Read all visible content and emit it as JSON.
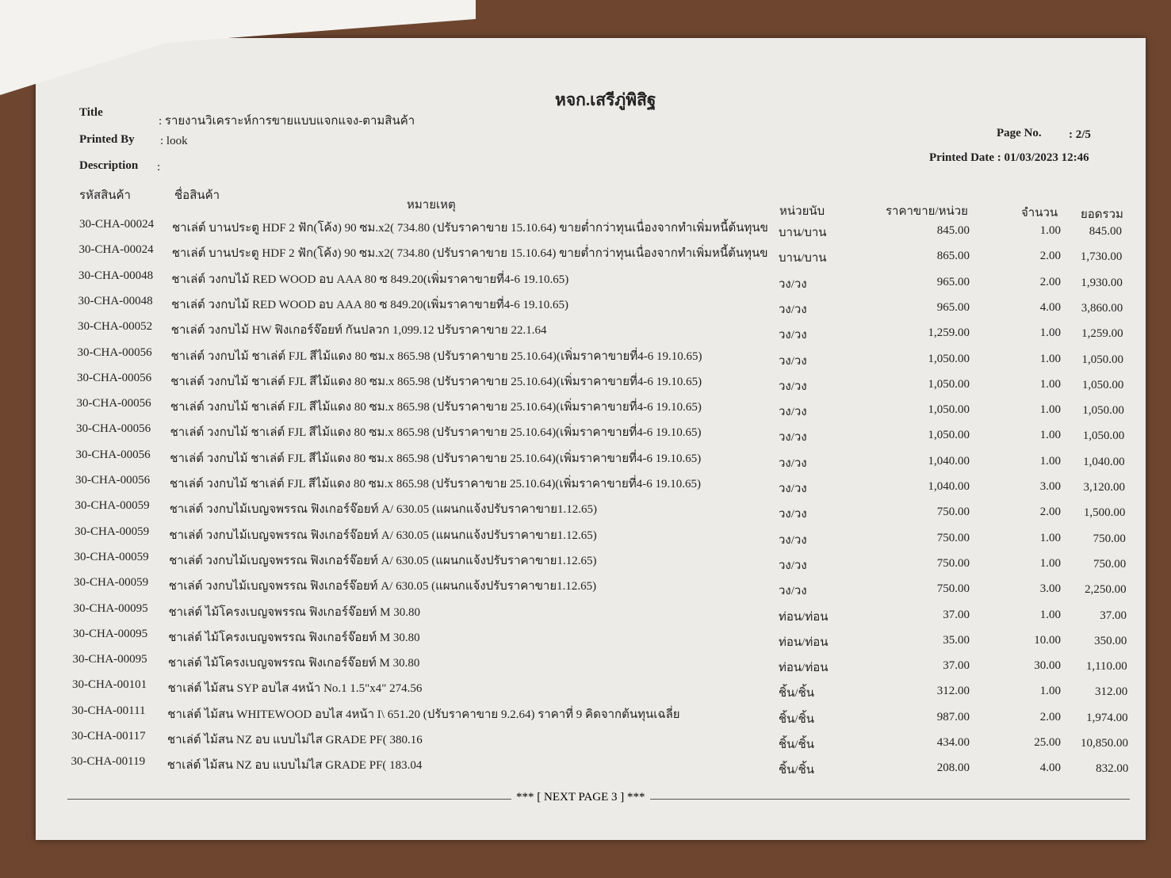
{
  "header": {
    "company": "หจก.เสรีภู่พิสิฐ",
    "title_label": "Title",
    "title_value": ": รายงานวิเคราะห์การขายแบบแจกแจง-ตามสินค้า",
    "printed_by_label": "Printed By",
    "printed_by_value": ": look",
    "description_label": "Description",
    "description_value": ":",
    "page_label": "Page No.",
    "page_value": ": 2/5",
    "printed_date": "Printed Date : 01/03/2023 12:46"
  },
  "table": {
    "columns": [
      "รหัสสินค้า",
      "ชื่อสินค้า",
      "หมายเหตุ",
      "หน่วยนับ",
      "ราคาขาย/หน่วย",
      "จำนวน",
      "ยอดรวม"
    ],
    "rows": [
      [
        "30-CHA-00024",
        "ชาเล่ต์ บานประตู HDF 2 ฟัก(โค้ง) 90 ซม.x2( 734.80 (ปรับราคาขาย 15.10.64) ขายต่ำกว่าทุนเนื่องจากทำเพิ่มหนี้ต้นทุนข",
        "บาน/บาน",
        "845.00",
        "1.00",
        "845.00"
      ],
      [
        "30-CHA-00024",
        "ชาเล่ต์ บานประตู HDF 2 ฟัก(โค้ง) 90 ซม.x2( 734.80 (ปรับราคาขาย 15.10.64) ขายต่ำกว่าทุนเนื่องจากทำเพิ่มหนี้ต้นทุนข",
        "บาน/บาน",
        "865.00",
        "2.00",
        "1,730.00"
      ],
      [
        "30-CHA-00048",
        "ชาเล่ต์ วงกบไม้ RED WOOD อบ AAA 80 ซ 849.20(เพิ่มราคาขายที่4-6 19.10.65)",
        "วง/วง",
        "965.00",
        "2.00",
        "1,930.00"
      ],
      [
        "30-CHA-00048",
        "ชาเล่ต์ วงกบไม้ RED WOOD อบ AAA 80 ซ 849.20(เพิ่มราคาขายที่4-6 19.10.65)",
        "วง/วง",
        "965.00",
        "4.00",
        "3,860.00"
      ],
      [
        "30-CHA-00052",
        "ชาเล่ต์ วงกบไม้ HW ฟิงเกอร์จ๊อยท์ กันปลวก 1,099.12 ปรับราคาขาย 22.1.64",
        "วง/วง",
        "1,259.00",
        "1.00",
        "1,259.00"
      ],
      [
        "30-CHA-00056",
        "ชาเล่ต์ วงกบไม้ ชาเล่ต์ FJL สีไม้แดง 80 ซม.x 865.98 (ปรับราคาขาย 25.10.64)(เพิ่มราคาขายที่4-6 19.10.65)",
        "วง/วง",
        "1,050.00",
        "1.00",
        "1,050.00"
      ],
      [
        "30-CHA-00056",
        "ชาเล่ต์ วงกบไม้ ชาเล่ต์ FJL สีไม้แดง 80 ซม.x 865.98 (ปรับราคาขาย 25.10.64)(เพิ่มราคาขายที่4-6 19.10.65)",
        "วง/วง",
        "1,050.00",
        "1.00",
        "1,050.00"
      ],
      [
        "30-CHA-00056",
        "ชาเล่ต์ วงกบไม้ ชาเล่ต์ FJL สีไม้แดง 80 ซม.x 865.98 (ปรับราคาขาย 25.10.64)(เพิ่มราคาขายที่4-6 19.10.65)",
        "วง/วง",
        "1,050.00",
        "1.00",
        "1,050.00"
      ],
      [
        "30-CHA-00056",
        "ชาเล่ต์ วงกบไม้ ชาเล่ต์ FJL สีไม้แดง 80 ซม.x 865.98 (ปรับราคาขาย 25.10.64)(เพิ่มราคาขายที่4-6 19.10.65)",
        "วง/วง",
        "1,050.00",
        "1.00",
        "1,050.00"
      ],
      [
        "30-CHA-00056",
        "ชาเล่ต์ วงกบไม้ ชาเล่ต์ FJL สีไม้แดง 80 ซม.x 865.98 (ปรับราคาขาย 25.10.64)(เพิ่มราคาขายที่4-6 19.10.65)",
        "วง/วง",
        "1,040.00",
        "1.00",
        "1,040.00"
      ],
      [
        "30-CHA-00056",
        "ชาเล่ต์ วงกบไม้ ชาเล่ต์ FJL สีไม้แดง 80 ซม.x 865.98 (ปรับราคาขาย 25.10.64)(เพิ่มราคาขายที่4-6 19.10.65)",
        "วง/วง",
        "1,040.00",
        "3.00",
        "3,120.00"
      ],
      [
        "30-CHA-00059",
        "ชาเล่ต์ วงกบไม้เบญจพรรณ ฟิงเกอร์จ๊อยท์ A/ 630.05 (แผนกแจ้งปรับราคาขาย1.12.65)",
        "วง/วง",
        "750.00",
        "2.00",
        "1,500.00"
      ],
      [
        "30-CHA-00059",
        "ชาเล่ต์ วงกบไม้เบญจพรรณ ฟิงเกอร์จ๊อยท์ A/ 630.05 (แผนกแจ้งปรับราคาขาย1.12.65)",
        "วง/วง",
        "750.00",
        "1.00",
        "750.00"
      ],
      [
        "30-CHA-00059",
        "ชาเล่ต์ วงกบไม้เบญจพรรณ ฟิงเกอร์จ๊อยท์ A/ 630.05 (แผนกแจ้งปรับราคาขาย1.12.65)",
        "วง/วง",
        "750.00",
        "1.00",
        "750.00"
      ],
      [
        "30-CHA-00059",
        "ชาเล่ต์ วงกบไม้เบญจพรรณ ฟิงเกอร์จ๊อยท์ A/ 630.05 (แผนกแจ้งปรับราคาขาย1.12.65)",
        "วง/วง",
        "750.00",
        "3.00",
        "2,250.00"
      ],
      [
        "30-CHA-00095",
        "ชาเล่ต์ ไม้โครงเบญจพรรณ ฟิงเกอร์จ๊อยท์ M 30.80",
        "ท่อน/ท่อน",
        "37.00",
        "1.00",
        "37.00"
      ],
      [
        "30-CHA-00095",
        "ชาเล่ต์ ไม้โครงเบญจพรรณ ฟิงเกอร์จ๊อยท์ M 30.80",
        "ท่อน/ท่อน",
        "35.00",
        "10.00",
        "350.00"
      ],
      [
        "30-CHA-00095",
        "ชาเล่ต์ ไม้โครงเบญจพรรณ ฟิงเกอร์จ๊อยท์ M 30.80",
        "ท่อน/ท่อน",
        "37.00",
        "30.00",
        "1,110.00"
      ],
      [
        "30-CHA-00101",
        "ชาเล่ต์ ไม้สน SYP อบไส 4หน้า No.1 1.5\"x4\" 274.56",
        "ชิ้น/ชิ้น",
        "312.00",
        "1.00",
        "312.00"
      ],
      [
        "30-CHA-00111",
        "ชาเล่ต์ ไม้สน WHITEWOOD อบไส 4หน้า I\\ 651.20 (ปรับราคาขาย 9.2.64) ราคาที่ 9 คิดจากต้นทุนเฉลี่ย",
        "ชิ้น/ชิ้น",
        "987.00",
        "2.00",
        "1,974.00"
      ],
      [
        "30-CHA-00117",
        "ชาเล่ต์ ไม้สน NZ อบ แบบไม่ไส GRADE PF( 380.16",
        "ชิ้น/ชิ้น",
        "434.00",
        "25.00",
        "10,850.00"
      ],
      [
        "30-CHA-00119",
        "ชาเล่ต์ ไม้สน NZ อบ แบบไม่ไส GRADE PF( 183.04",
        "ชิ้น/ชิ้น",
        "208.00",
        "4.00",
        "832.00"
      ]
    ]
  },
  "footer": "*** [  NEXT PAGE 3  ] ***"
}
